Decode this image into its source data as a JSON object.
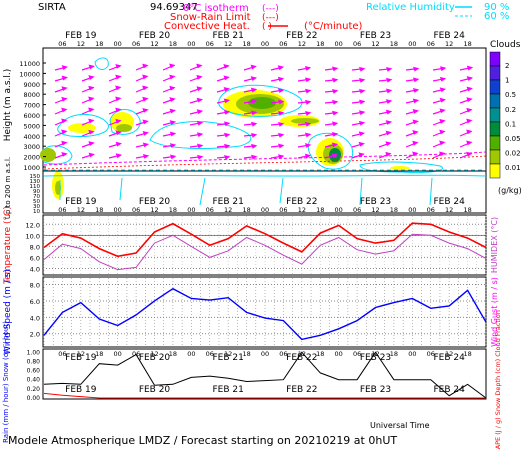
{
  "header": {
    "station": "SIRTA",
    "coords": "94.69347",
    "legend_isotherm": "0°C isotherm",
    "legend_snow_rain": "Snow-Rain Limit",
    "legend_convective": "Convective Heat.",
    "legend_convective_unit": "(°C/minute)",
    "legend_rh": "Relative Humidity",
    "legend_rh_90": "90 %",
    "legend_rh_60": "60 %",
    "dash_symbol": "(---)",
    "paren_symbol": "(  )"
  },
  "footer": {
    "title": "Modele Atmospherique LMDZ / Forecast starting on 20210219 at 0hUT",
    "xlabel": "Universal Time"
  },
  "colors": {
    "isotherm": "#ff00ff",
    "rh": "#00dcff",
    "temperature": "#ff0000",
    "humidex": "#c040c0",
    "wind": "#0000ff",
    "rain": "#000000",
    "snow": "#ff0000",
    "cloud_scale": [
      "#ffff00",
      "#a0c800",
      "#50b000",
      "#008c3c",
      "#009090",
      "#0070b0",
      "#1040d0",
      "#5020e0",
      "#8000ff"
    ]
  },
  "chart_data": [
    {
      "panel": "clouds",
      "type": "heatmap",
      "days": [
        "FEB 19",
        "FEB 20",
        "FEB 21",
        "FEB 22",
        "FEB 23",
        "FEB 24"
      ],
      "hour_ticks": [
        "06",
        "12",
        "18",
        "00"
      ],
      "ylabel": "Height (m a.s.l.)",
      "ylabel_low": "Up to 200 m a.s.l.",
      "yticks_upper": [
        "11000",
        "10000",
        "9000",
        "8000",
        "7000",
        "6000",
        "5000",
        "4000",
        "3000",
        "2000",
        "1000"
      ],
      "yticks_lower": [
        "150",
        "140",
        "130",
        "120",
        "110",
        "100",
        "90",
        "80",
        "70",
        "60",
        "50",
        "40",
        "30",
        "20",
        "10"
      ],
      "colorbar_title": "Clouds",
      "colorbar_ticks": [
        "2",
        "1",
        "0.5",
        "0.2",
        "0.1",
        "0.05",
        "0.02",
        "0.01"
      ],
      "colorbar_unit": "(g/kg)"
    },
    {
      "panel": "temperature",
      "type": "line",
      "ylabel": "Temperature (°C)",
      "ylabel_right": "HUMIDEX (°C)",
      "yticks": [
        "12.0",
        "10.0",
        "8.0",
        "6.0",
        "4.0"
      ],
      "ylim": [
        3,
        13.5
      ],
      "x_hours": [
        0,
        6,
        12,
        18,
        24,
        30,
        36,
        42,
        48,
        54,
        60,
        66,
        72,
        78,
        84,
        90,
        96,
        102,
        108,
        114,
        120,
        126,
        132,
        138,
        144
      ],
      "series": [
        {
          "name": "Temperature",
          "values": [
            7.8,
            10.3,
            9.5,
            7.6,
            6.2,
            6.8,
            10.6,
            12.1,
            10.2,
            8.2,
            9.4,
            11.7,
            10.3,
            8.6,
            7.0,
            10.4,
            11.8,
            9.4,
            8.6,
            9.1,
            12.2,
            12.0,
            10.6,
            9.5,
            7.8
          ]
        },
        {
          "name": "HUMIDEX",
          "values": [
            5.6,
            8.4,
            7.6,
            5.2,
            3.8,
            4.2,
            8.6,
            10.0,
            8.0,
            6.0,
            7.2,
            9.6,
            8.2,
            6.4,
            4.8,
            8.2,
            9.6,
            7.4,
            6.6,
            7.2,
            10.2,
            10.0,
            8.6,
            7.6,
            5.8
          ]
        }
      ]
    },
    {
      "panel": "wind",
      "type": "line",
      "ylabel": "Wind Speed (m / s)",
      "ylabel_right": "Wind Gust (m / s)",
      "yticks": [
        "8.0",
        "6.0",
        "4.0",
        "2.0"
      ],
      "ylim": [
        0.5,
        8.8
      ],
      "x_hours": [
        0,
        6,
        12,
        18,
        24,
        30,
        36,
        42,
        48,
        54,
        60,
        66,
        72,
        78,
        84,
        90,
        96,
        102,
        108,
        114,
        120,
        126,
        132,
        138,
        144
      ],
      "series": [
        {
          "name": "Wind Speed",
          "values": [
            1.8,
            4.6,
            5.8,
            3.8,
            3.0,
            4.3,
            6.0,
            7.5,
            6.3,
            6.1,
            6.4,
            4.6,
            3.9,
            3.6,
            1.3,
            1.8,
            2.6,
            3.6,
            5.2,
            5.8,
            6.3,
            5.1,
            5.4,
            7.3,
            3.4
          ]
        }
      ]
    },
    {
      "panel": "precip",
      "type": "line",
      "ylabel": "Rain (mm / hour) Snow (cm / hour)",
      "ylabel_right": "CAPE (J / g) Snow Depth (cm) Cloud Fraction",
      "yticks": [
        "1.00",
        "0.80",
        "0.60",
        "0.40",
        "0.20",
        "0.00"
      ],
      "ylim": [
        0,
        1.05
      ],
      "x_hours": [
        0,
        6,
        12,
        18,
        24,
        30,
        36,
        42,
        48,
        54,
        60,
        66,
        72,
        78,
        84,
        90,
        96,
        102,
        108,
        114,
        120,
        126,
        132,
        138,
        144
      ],
      "series": [
        {
          "name": "Cloud Fraction",
          "values": [
            0.3,
            0.32,
            0.3,
            0.75,
            0.72,
            0.95,
            0.28,
            0.3,
            0.45,
            0.48,
            0.43,
            0.36,
            0.38,
            0.4,
            1.0,
            0.55,
            0.4,
            0.4,
            1.0,
            0.4,
            0.4,
            0.4,
            0.05,
            0.3,
            0.0
          ]
        },
        {
          "name": "Rain",
          "values": [
            0.1,
            0.06,
            0.03,
            0.0,
            0.0,
            0.0,
            0.0,
            0.0,
            0.0,
            0.0,
            0.0,
            0.0,
            0.0,
            0.0,
            0.0,
            0.0,
            0.0,
            0.0,
            0.0,
            0.0,
            0.0,
            0.0,
            0.0,
            0.0,
            0.0
          ]
        }
      ]
    }
  ]
}
